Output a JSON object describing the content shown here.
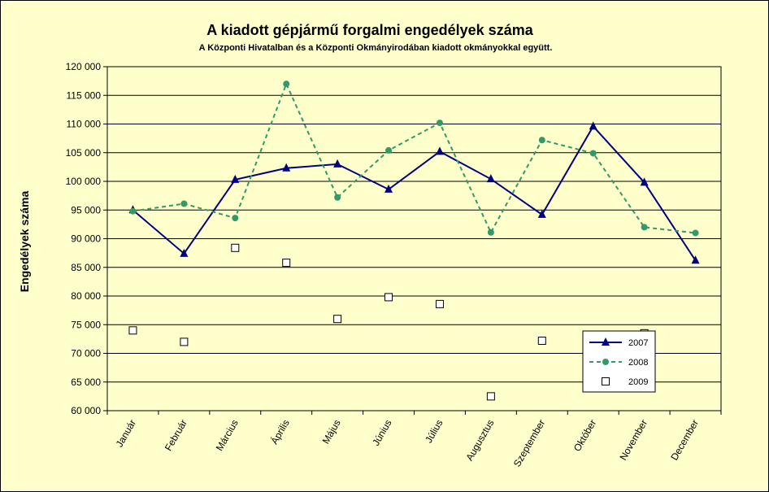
{
  "chart_data": {
    "type": "line",
    "title": "A  kiadott gépjármű forgalmi engedélyek száma",
    "subtitle": "A  Központi Hivatalban és a Központi Okmányirodában kiadott okmányokkal együtt.",
    "xlabel": "",
    "ylabel": "Engedélyek száma",
    "ylim": [
      60000,
      120000
    ],
    "y_ticks": [
      60000,
      65000,
      70000,
      75000,
      80000,
      85000,
      90000,
      95000,
      100000,
      105000,
      110000,
      115000,
      120000
    ],
    "y_tick_labels": [
      "60 000",
      "65 000",
      "70 000",
      "75 000",
      "80 000",
      "85 000",
      "90 000",
      "95 000",
      "100 000",
      "105 000",
      "110 000",
      "115 000",
      "120 000"
    ],
    "grid": true,
    "legend_position": "bottom-right",
    "categories": [
      "Január",
      "Február",
      "Március",
      "Április",
      "Május",
      "Június",
      "Július",
      "Augusztus",
      "Szeptember",
      "Október",
      "November",
      "December"
    ],
    "series": [
      {
        "name": "2007",
        "color": "#000080",
        "style": "solid",
        "marker": "triangle",
        "values": [
          95000,
          87400,
          100300,
          102300,
          103000,
          98600,
          105200,
          100400,
          94200,
          109600,
          99800,
          86200
        ]
      },
      {
        "name": "2008",
        "color": "#339966",
        "style": "dashed",
        "marker": "circle",
        "values": [
          94800,
          96100,
          93600,
          117000,
          97200,
          105400,
          110200,
          91100,
          107200,
          104900,
          92000,
          91000
        ]
      },
      {
        "name": "2009",
        "color": "#000000",
        "style": "markers-only",
        "marker": "square-open",
        "values": [
          74000,
          72000,
          88400,
          85800,
          76000,
          79800,
          78600,
          62500,
          72200,
          null,
          73500,
          null
        ]
      }
    ]
  }
}
